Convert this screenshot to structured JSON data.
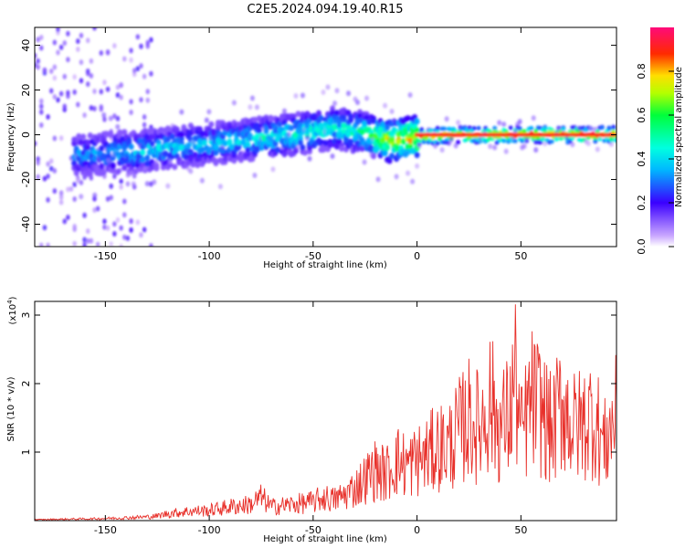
{
  "title": "C2E5.2024.094.19.40.R15",
  "colors": {
    "snr_line": "#e8312b",
    "frame": "#000000"
  },
  "chart_data": [
    {
      "type": "heatmap",
      "xlabel": "Height of straight line (km)",
      "ylabel": "Frequency (Hz)",
      "xlim": [
        -184,
        96
      ],
      "ylim": [
        -50,
        48
      ],
      "xticks": [
        -150,
        -100,
        -50,
        0,
        50
      ],
      "yticks": [
        40,
        20,
        0,
        -20,
        -40
      ],
      "colorbar": {
        "label": "Normalized spectral amplitude",
        "range": [
          0,
          1
        ],
        "ticks": [
          0.0,
          0.2,
          0.4,
          0.6,
          0.8
        ]
      },
      "ridge": {
        "description_points_x": [
          -160,
          -130,
          -110,
          -80,
          -60,
          -40,
          -25,
          -15,
          0,
          20,
          50,
          96
        ],
        "center_hz": [
          -9,
          -7,
          -5,
          -2,
          0,
          3,
          1,
          -3,
          -1,
          0,
          0,
          0
        ],
        "peak_amplitude": [
          0.35,
          0.45,
          0.4,
          0.45,
          0.5,
          0.5,
          0.55,
          0.8,
          0.85,
          0.9,
          0.95,
          0.95
        ]
      }
    },
    {
      "type": "line",
      "xlabel": "Height of straight line (km)",
      "ylabel": "SNR (10 * v/v)",
      "scale_label": "(x10",
      "scale_exp": "4",
      "scale_close": ")",
      "xlim": [
        -184,
        96
      ],
      "ylim": [
        0,
        3.2
      ],
      "xticks": [
        -150,
        -100,
        -50,
        0,
        50
      ],
      "yticks": [
        1,
        2,
        3
      ],
      "series": [
        {
          "x": [
            -184,
            -170,
            -155,
            -140,
            -130,
            -125,
            -120,
            -110,
            -100,
            -90,
            -80,
            -75,
            -70,
            -60,
            -50,
            -45,
            -40,
            -35,
            -30,
            -25,
            -20,
            -15,
            -10,
            -5,
            0,
            5,
            10,
            15,
            20,
            25,
            30,
            35,
            40,
            45,
            47,
            50,
            55,
            60,
            65,
            70,
            75,
            80,
            85,
            90,
            95
          ],
          "y": [
            0.02,
            0.03,
            0.04,
            0.06,
            0.08,
            0.1,
            0.15,
            0.2,
            0.22,
            0.3,
            0.35,
            0.5,
            0.3,
            0.35,
            0.4,
            0.5,
            0.45,
            0.55,
            0.7,
            0.9,
            1.1,
            1.0,
            1.3,
            1.2,
            1.3,
            1.4,
            1.6,
            1.6,
            1.9,
            2.2,
            2.0,
            2.6,
            2.0,
            2.3,
            3.2,
            1.8,
            2.6,
            2.4,
            1.9,
            2.6,
            2.0,
            2.1,
            2.3,
            1.6,
            2.2
          ]
        }
      ]
    }
  ]
}
